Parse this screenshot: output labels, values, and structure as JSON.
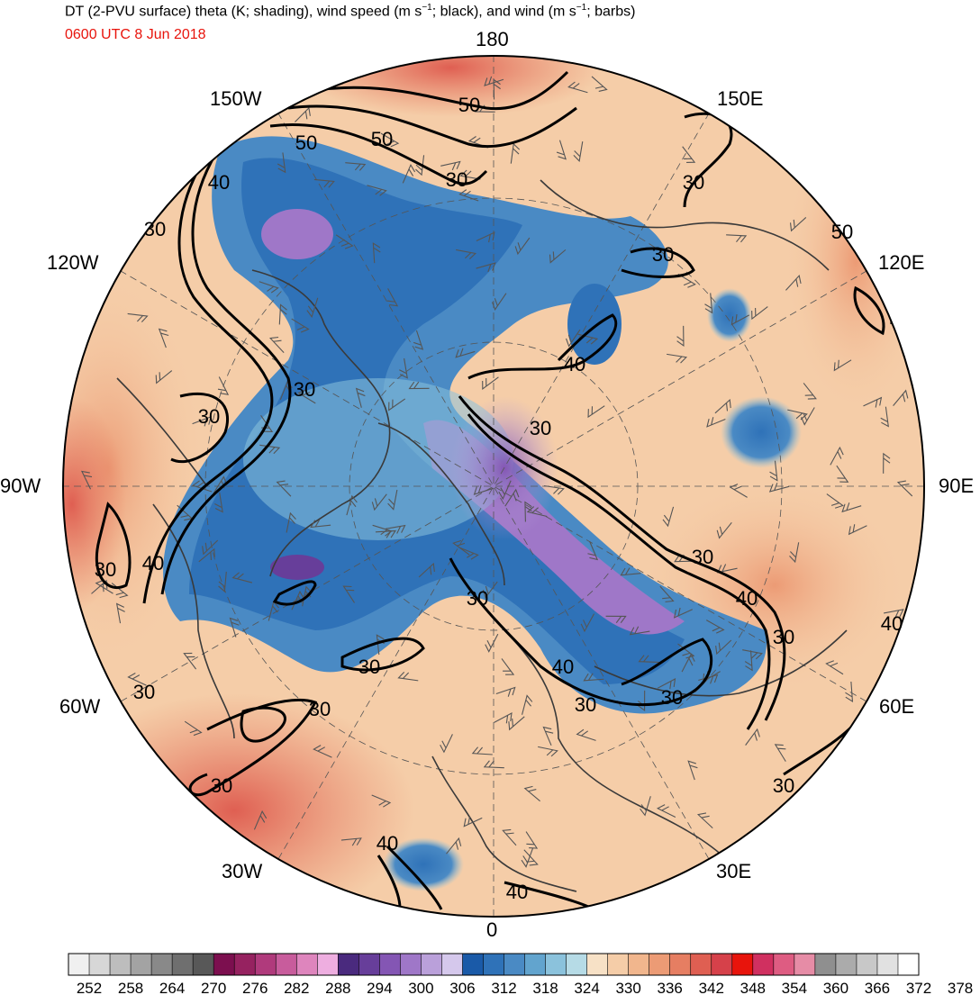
{
  "header": {
    "title_parts": [
      "DT (2-PVU surface) theta (K; shading), wind speed (m s",
      "−1",
      "; black), and wind (m s",
      "−1",
      "; barbs)"
    ],
    "valid_time": "0600 UTC 8 Jun 2018"
  },
  "longitude_labels": {
    "lon_180": "180",
    "lon_150e": "150E",
    "lon_120e": "120E",
    "lon_90e": "90E",
    "lon_60e": "60E",
    "lon_30e": "30E",
    "lon_0": "0",
    "lon_30w": "30W",
    "lon_60w": "60W",
    "lon_90w": "90W",
    "lon_120w": "120W",
    "lon_150w": "150W"
  },
  "contour_labels": [
    "50",
    "50",
    "50",
    "40",
    "30",
    "30",
    "30",
    "50",
    "30",
    "40",
    "30",
    "30",
    "30",
    "30",
    "40",
    "30",
    "40",
    "40",
    "30",
    "30",
    "30",
    "40",
    "30",
    "30",
    "30",
    "30",
    "30",
    "40",
    "40",
    "30"
  ],
  "colorbar": {
    "tick_labels": [
      "252",
      "258",
      "264",
      "270",
      "276",
      "282",
      "288",
      "294",
      "300",
      "306",
      "312",
      "318",
      "324",
      "330",
      "336",
      "342",
      "348",
      "354",
      "360",
      "366",
      "372",
      "378"
    ],
    "colors": [
      "#f0f0f0",
      "#d7d7d7",
      "#bdbdbd",
      "#a3a3a3",
      "#898989",
      "#6f6f6f",
      "#585858",
      "#7c0f4f",
      "#962260",
      "#b03a7c",
      "#c85c9c",
      "#de85bd",
      "#eeaee0",
      "#4a2a7e",
      "#673e9a",
      "#8456b4",
      "#9f77c8",
      "#baa0da",
      "#d5c8ec",
      "#1a5aa8",
      "#2f72b8",
      "#4a8ac4",
      "#62a4ce",
      "#8bc2dc",
      "#b6dbe6",
      "#f7e1c6",
      "#f5cda8",
      "#f1b68d",
      "#ec9b75",
      "#e67e62",
      "#df5f52",
      "#d6414a",
      "#e8140c",
      "#d03060",
      "#de5c82",
      "#e68ca6",
      "#8f8f8f",
      "#ababab",
      "#c8c8c8",
      "#e1e1e1",
      "#ffffff"
    ]
  },
  "theme": {
    "contour_color": "#000000",
    "coastline_color": "#3a3a3a",
    "barb_color": "#555555",
    "valid_time_color": "#e8140c"
  }
}
